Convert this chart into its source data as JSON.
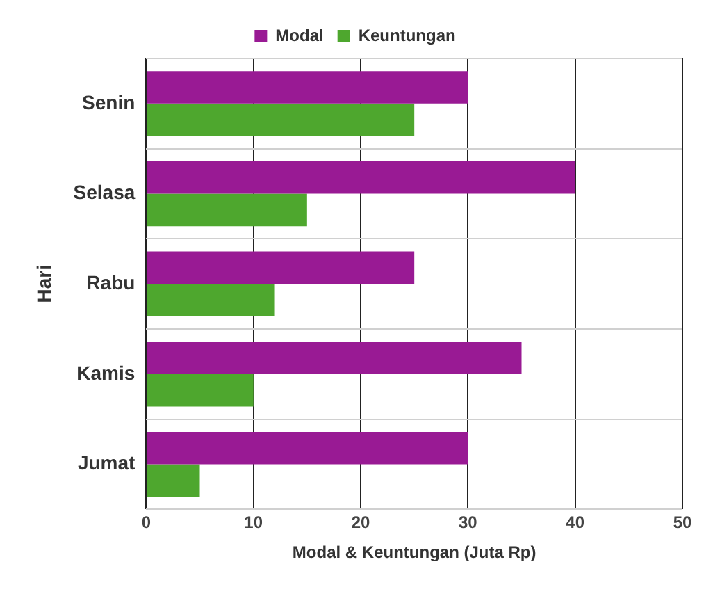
{
  "chart_data": {
    "type": "bar",
    "orientation": "horizontal",
    "xlabel": "Modal & Keuntungan (Juta Rp)",
    "ylabel": "Hari",
    "categories": [
      "Senin",
      "Selasa",
      "Rabu",
      "Kamis",
      "Jumat"
    ],
    "series": [
      {
        "name": "Modal",
        "color": "#991a94",
        "values": [
          30,
          40,
          25,
          35,
          30
        ]
      },
      {
        "name": "Keuntungan",
        "color": "#4ea72e",
        "values": [
          25,
          15,
          12,
          10,
          5
        ]
      }
    ],
    "xlim": [
      0,
      50
    ],
    "xticks": [
      0,
      10,
      20,
      30,
      40,
      50
    ],
    "grid": true,
    "legend": "top"
  }
}
